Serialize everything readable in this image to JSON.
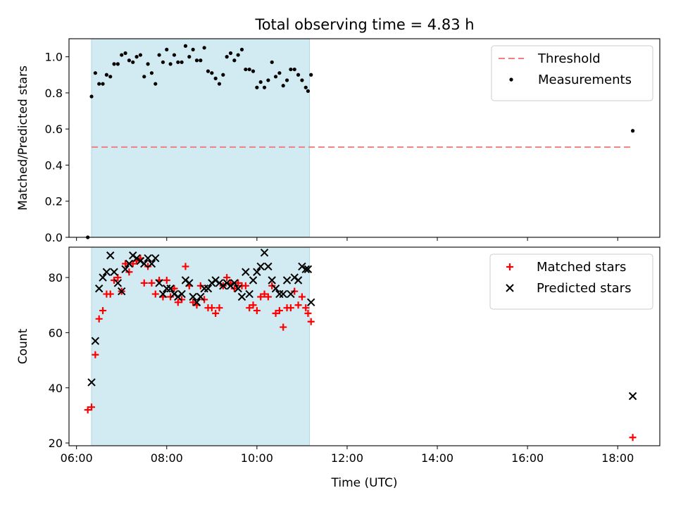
{
  "title": "Total observing time = 4.83 h",
  "chart_data": [
    {
      "type": "scatter",
      "ylabel": "Matched/Predicted stars",
      "xlabel": "",
      "xlim": [
        "05:50",
        "18:56"
      ],
      "ylim": [
        0.0,
        1.1
      ],
      "yticks": [
        "0.0",
        "0.2",
        "0.4",
        "0.6",
        "0.8",
        "1.0"
      ],
      "yticks_values": [
        0,
        0.2,
        0.4,
        0.6,
        0.8,
        1.0
      ],
      "shaded_interval": [
        "06:20",
        "11:10"
      ],
      "shaded_color": "#add8e6",
      "threshold": {
        "name": "Threshold",
        "value": 0.5,
        "x_range": [
          "06:20",
          "18:20"
        ],
        "color": "#f08080"
      },
      "legend": {
        "position": "top-right",
        "entries": [
          "Threshold",
          "Measurements"
        ]
      },
      "series": [
        {
          "name": "Measurements",
          "color": "#000000",
          "marker": "dot",
          "points": [
            [
              "06:15",
              0.0
            ],
            [
              "06:20",
              0.78
            ],
            [
              "06:25",
              0.91
            ],
            [
              "06:30",
              0.85
            ],
            [
              "06:35",
              0.85
            ],
            [
              "06:40",
              0.9
            ],
            [
              "06:45",
              0.89
            ],
            [
              "06:50",
              0.96
            ],
            [
              "06:55",
              0.96
            ],
            [
              "07:00",
              1.01
            ],
            [
              "07:05",
              1.02
            ],
            [
              "07:10",
              0.98
            ],
            [
              "07:15",
              0.97
            ],
            [
              "07:20",
              1.0
            ],
            [
              "07:25",
              1.01
            ],
            [
              "07:30",
              0.89
            ],
            [
              "07:35",
              0.96
            ],
            [
              "07:40",
              0.91
            ],
            [
              "07:45",
              0.85
            ],
            [
              "07:50",
              1.01
            ],
            [
              "07:55",
              0.97
            ],
            [
              "08:00",
              1.04
            ],
            [
              "08:05",
              0.96
            ],
            [
              "08:10",
              1.01
            ],
            [
              "08:15",
              0.97
            ],
            [
              "08:20",
              0.97
            ],
            [
              "08:25",
              1.06
            ],
            [
              "08:30",
              1.0
            ],
            [
              "08:35",
              1.04
            ],
            [
              "08:40",
              0.98
            ],
            [
              "08:45",
              0.98
            ],
            [
              "08:50",
              1.05
            ],
            [
              "08:55",
              0.92
            ],
            [
              "09:00",
              0.91
            ],
            [
              "09:05",
              0.88
            ],
            [
              "09:10",
              0.85
            ],
            [
              "09:15",
              0.9
            ],
            [
              "09:20",
              1.0
            ],
            [
              "09:25",
              1.02
            ],
            [
              "09:30",
              0.98
            ],
            [
              "09:35",
              1.01
            ],
            [
              "09:40",
              1.04
            ],
            [
              "09:45",
              0.93
            ],
            [
              "09:50",
              0.93
            ],
            [
              "09:55",
              0.92
            ],
            [
              "10:00",
              0.83
            ],
            [
              "10:05",
              0.86
            ],
            [
              "10:10",
              0.83
            ],
            [
              "10:15",
              0.87
            ],
            [
              "10:20",
              0.97
            ],
            [
              "10:25",
              0.89
            ],
            [
              "10:30",
              0.91
            ],
            [
              "10:35",
              0.84
            ],
            [
              "10:40",
              0.87
            ],
            [
              "10:45",
              0.93
            ],
            [
              "10:50",
              0.93
            ],
            [
              "10:55",
              0.9
            ],
            [
              "11:00",
              0.87
            ],
            [
              "11:05",
              0.83
            ],
            [
              "11:08",
              0.81
            ],
            [
              "11:12",
              0.9
            ],
            [
              "18:20",
              0.59
            ]
          ]
        }
      ]
    },
    {
      "type": "scatter",
      "ylabel": "Count",
      "xlabel": "Time (UTC)",
      "xlim": [
        "05:50",
        "18:56"
      ],
      "ylim": [
        19,
        91
      ],
      "yticks": [
        "20",
        "40",
        "60",
        "80"
      ],
      "yticks_values": [
        20,
        40,
        60,
        80
      ],
      "xticks": [
        "06:00",
        "08:00",
        "10:00",
        "12:00",
        "14:00",
        "16:00",
        "18:00"
      ],
      "shaded_interval": [
        "06:20",
        "11:10"
      ],
      "shaded_color": "#add8e6",
      "legend": {
        "position": "top-right",
        "entries": [
          "Matched stars",
          "Predicted stars"
        ]
      },
      "series": [
        {
          "name": "Matched stars",
          "color": "#ff0000",
          "marker": "plus",
          "points": [
            [
              "06:15",
              32
            ],
            [
              "06:20",
              33
            ],
            [
              "06:25",
              52
            ],
            [
              "06:30",
              65
            ],
            [
              "06:35",
              68
            ],
            [
              "06:40",
              74
            ],
            [
              "06:45",
              74
            ],
            [
              "06:50",
              79
            ],
            [
              "06:55",
              80
            ],
            [
              "07:00",
              75
            ],
            [
              "07:05",
              85
            ],
            [
              "07:10",
              82
            ],
            [
              "07:15",
              85
            ],
            [
              "07:20",
              86
            ],
            [
              "07:25",
              87
            ],
            [
              "07:30",
              78
            ],
            [
              "07:35",
              84
            ],
            [
              "07:40",
              78
            ],
            [
              "07:45",
              74
            ],
            [
              "07:50",
              79
            ],
            [
              "07:55",
              73
            ],
            [
              "08:00",
              79
            ],
            [
              "08:05",
              73
            ],
            [
              "08:10",
              76
            ],
            [
              "08:15",
              71
            ],
            [
              "08:20",
              72
            ],
            [
              "08:25",
              84
            ],
            [
              "08:30",
              77
            ],
            [
              "08:35",
              71
            ],
            [
              "08:40",
              70
            ],
            [
              "08:45",
              77
            ],
            [
              "08:50",
              72
            ],
            [
              "08:55",
              69
            ],
            [
              "09:00",
              69
            ],
            [
              "09:05",
              67
            ],
            [
              "09:10",
              69
            ],
            [
              "09:15",
              77
            ],
            [
              "09:20",
              80
            ],
            [
              "09:25",
              78
            ],
            [
              "09:30",
              76
            ],
            [
              "09:35",
              78
            ],
            [
              "09:40",
              77
            ],
            [
              "09:45",
              77
            ],
            [
              "09:50",
              69
            ],
            [
              "09:55",
              70
            ],
            [
              "10:00",
              68
            ],
            [
              "10:05",
              73
            ],
            [
              "10:10",
              74
            ],
            [
              "10:15",
              73
            ],
            [
              "10:20",
              77
            ],
            [
              "10:25",
              67
            ],
            [
              "10:30",
              68
            ],
            [
              "10:35",
              62
            ],
            [
              "10:40",
              69
            ],
            [
              "10:45",
              69
            ],
            [
              "10:50",
              75
            ],
            [
              "10:55",
              70
            ],
            [
              "11:00",
              73
            ],
            [
              "11:05",
              69
            ],
            [
              "11:08",
              67
            ],
            [
              "11:12",
              64
            ],
            [
              "18:20",
              22
            ]
          ]
        },
        {
          "name": "Predicted stars",
          "color": "#000000",
          "marker": "x",
          "points": [
            [
              "06:20",
              42
            ],
            [
              "06:25",
              57
            ],
            [
              "06:30",
              76
            ],
            [
              "06:35",
              80
            ],
            [
              "06:40",
              82
            ],
            [
              "06:45",
              88
            ],
            [
              "06:50",
              82
            ],
            [
              "06:55",
              78
            ],
            [
              "07:00",
              75
            ],
            [
              "07:05",
              83
            ],
            [
              "07:10",
              85
            ],
            [
              "07:15",
              88
            ],
            [
              "07:20",
              87
            ],
            [
              "07:25",
              86
            ],
            [
              "07:30",
              85
            ],
            [
              "07:35",
              87
            ],
            [
              "07:40",
              85
            ],
            [
              "07:45",
              87
            ],
            [
              "07:50",
              78
            ],
            [
              "07:55",
              74
            ],
            [
              "08:00",
              76
            ],
            [
              "08:05",
              76
            ],
            [
              "08:10",
              74
            ],
            [
              "08:15",
              73
            ],
            [
              "08:20",
              74
            ],
            [
              "08:25",
              79
            ],
            [
              "08:30",
              78
            ],
            [
              "08:35",
              73
            ],
            [
              "08:40",
              71
            ],
            [
              "08:45",
              73
            ],
            [
              "08:50",
              76
            ],
            [
              "08:55",
              76
            ],
            [
              "09:00",
              78
            ],
            [
              "09:05",
              79
            ],
            [
              "09:10",
              78
            ],
            [
              "09:15",
              77
            ],
            [
              "09:20",
              78
            ],
            [
              "09:25",
              77
            ],
            [
              "09:30",
              78
            ],
            [
              "09:35",
              76
            ],
            [
              "09:40",
              73
            ],
            [
              "09:45",
              82
            ],
            [
              "09:50",
              74
            ],
            [
              "09:55",
              79
            ],
            [
              "10:00",
              82
            ],
            [
              "10:05",
              84
            ],
            [
              "10:10",
              89
            ],
            [
              "10:15",
              84
            ],
            [
              "10:20",
              79
            ],
            [
              "10:25",
              76
            ],
            [
              "10:30",
              74
            ],
            [
              "10:35",
              74
            ],
            [
              "10:40",
              79
            ],
            [
              "10:45",
              74
            ],
            [
              "10:50",
              80
            ],
            [
              "10:55",
              79
            ],
            [
              "11:00",
              84
            ],
            [
              "11:05",
              83
            ],
            [
              "11:08",
              83
            ],
            [
              "11:12",
              71
            ],
            [
              "18:20",
              37
            ]
          ]
        }
      ]
    }
  ]
}
